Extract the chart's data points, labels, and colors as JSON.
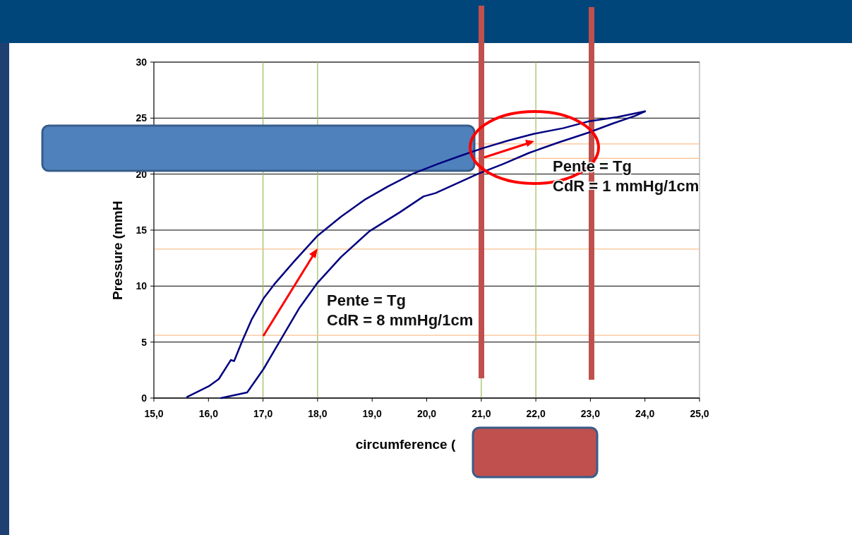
{
  "chart_data": {
    "type": "line",
    "xlabel": "circumference (",
    "ylabel": "Pressure (mmH",
    "xlim": [
      15,
      25
    ],
    "ylim": [
      0,
      30
    ],
    "xticks": [
      {
        "value": 15,
        "label": "15,0"
      },
      {
        "value": 16,
        "label": "16,0"
      },
      {
        "value": 17,
        "label": "17,0"
      },
      {
        "value": 18,
        "label": "18,0"
      },
      {
        "value": 19,
        "label": "19,0"
      },
      {
        "value": 20,
        "label": "20,0"
      },
      {
        "value": 21,
        "label": "21,0"
      },
      {
        "value": 22,
        "label": "22,0"
      },
      {
        "value": 23,
        "label": "23,0"
      },
      {
        "value": 24,
        "label": "24,0"
      },
      {
        "value": 25,
        "label": "25,0"
      }
    ],
    "yticks": [
      0,
      5,
      10,
      15,
      20,
      25,
      30
    ],
    "grid": "y",
    "marker": "none",
    "line_style": "solid",
    "series": [
      {
        "color": "#000080",
        "x": [
          15.61,
          16.02,
          16.19,
          16.41,
          16.47,
          16.62,
          16.79,
          17.01,
          17.23,
          17.57,
          18.0,
          18.43,
          18.86,
          19.29,
          19.73,
          20.2,
          20.6,
          21.02,
          21.5,
          21.97,
          22.5,
          22.96,
          23.5,
          24.0
        ],
        "values": [
          0.1,
          1.1,
          1.7,
          3.4,
          3.3,
          5.1,
          7.0,
          8.9,
          10.3,
          12.2,
          14.5,
          16.2,
          17.7,
          18.9,
          20.0,
          20.9,
          21.6,
          22.3,
          23.0,
          23.6,
          24.1,
          24.7,
          25.1,
          25.6
        ]
      },
      {
        "color": "#000080",
        "x": [
          16.23,
          16.71,
          17.01,
          17.31,
          17.66,
          18.0,
          18.43,
          18.95,
          19.51,
          19.94,
          20.16,
          20.93,
          21.4,
          21.88,
          22.4,
          22.96,
          23.4,
          23.82,
          24.0
        ],
        "values": [
          0.0,
          0.5,
          2.6,
          5.1,
          8.0,
          10.3,
          12.6,
          14.9,
          16.6,
          18.0,
          18.3,
          20.0,
          20.9,
          21.9,
          22.8,
          23.7,
          24.5,
          25.2,
          25.6
        ]
      }
    ],
    "ref_lines": [
      {
        "axis": "x",
        "value": 17,
        "color": "#9bbb59"
      },
      {
        "axis": "x",
        "value": 18,
        "color": "#9bbb59"
      },
      {
        "axis": "x",
        "value": 21,
        "color": "#9bbb59"
      },
      {
        "axis": "x",
        "value": 22,
        "color": "#9bbb59"
      },
      {
        "axis": "y",
        "value": 13.3,
        "color": "#fac090"
      },
      {
        "axis": "y",
        "value": 5.6,
        "color": "#fac090"
      },
      {
        "axis": "y",
        "value": 22.7,
        "color": "#fac090"
      },
      {
        "axis": "y",
        "value": 21.4,
        "color": "#fac090"
      }
    ],
    "annotations": [
      "Pente = Tg",
      "CdR = 8 mmHg/1cm",
      "Pente = Tg",
      "CdR = 1 mmHg/1cm"
    ]
  }
}
